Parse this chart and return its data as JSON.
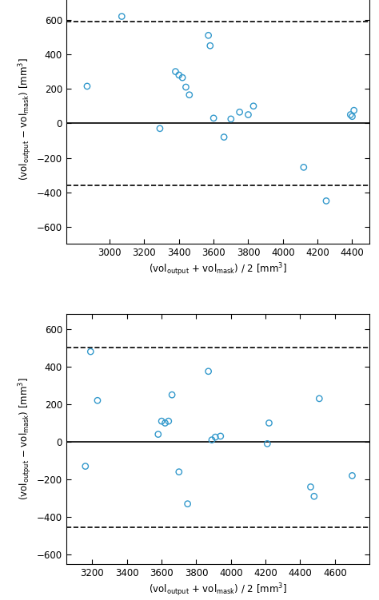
{
  "plot1": {
    "x": [
      2870,
      3070,
      3290,
      3380,
      3400,
      3420,
      3440,
      3460,
      3570,
      3580,
      3600,
      3660,
      3700,
      3750,
      3800,
      3830,
      4120,
      4250,
      4390,
      4400,
      4410
    ],
    "y": [
      215,
      620,
      -30,
      300,
      280,
      265,
      210,
      165,
      510,
      450,
      30,
      -80,
      25,
      65,
      50,
      100,
      -255,
      -450,
      50,
      40,
      75
    ],
    "mean_line": 0,
    "upper_loa": 590,
    "lower_loa": -360,
    "xlim": [
      2750,
      4500
    ],
    "ylim": [
      -700,
      750
    ],
    "yticks": [
      -600,
      -400,
      -200,
      0,
      200,
      400,
      600
    ],
    "xticks": [
      3000,
      3200,
      3400,
      3600,
      3800,
      4000,
      4200,
      4400
    ],
    "xlabel": "(vol$_\\mathregular{output}$ + vol$_\\mathregular{mask}$) / 2 [mm$^3$]",
    "ylabel": "(vol$_\\mathregular{output}$ − vol$_\\mathregular{mask}$) [mm$^3$]"
  },
  "plot2": {
    "x": [
      3160,
      3190,
      3230,
      3580,
      3600,
      3620,
      3640,
      3660,
      3700,
      3750,
      3870,
      3890,
      3910,
      3940,
      4210,
      4220,
      4460,
      4480,
      4510,
      4700
    ],
    "y": [
      -130,
      480,
      220,
      40,
      110,
      100,
      110,
      250,
      -160,
      -330,
      375,
      10,
      25,
      30,
      -10,
      100,
      -240,
      -290,
      230,
      -180
    ],
    "mean_line": 0,
    "upper_loa": 500,
    "lower_loa": -455,
    "xlim": [
      3050,
      4800
    ],
    "ylim": [
      -650,
      680
    ],
    "yticks": [
      -600,
      -400,
      -200,
      0,
      200,
      400,
      600
    ],
    "xticks": [
      3200,
      3400,
      3600,
      3800,
      4000,
      4200,
      4400,
      4600
    ],
    "xlabel": "(vol$_\\mathregular{output}$ + vol$_\\mathregular{mask}$) / 2 [mm$^3$]",
    "ylabel": "(vol$_\\mathregular{output}$ − vol$_\\mathregular{mask}$) [mm$^3$]"
  },
  "marker_color": "#3399cc",
  "marker_linewidth": 1.0,
  "marker_size": 28,
  "mean_color": "black",
  "loa_color": "black",
  "loa_linestyle": "--",
  "mean_linestyle": "-",
  "mean_linewidth": 1.2,
  "loa_linewidth": 1.2
}
